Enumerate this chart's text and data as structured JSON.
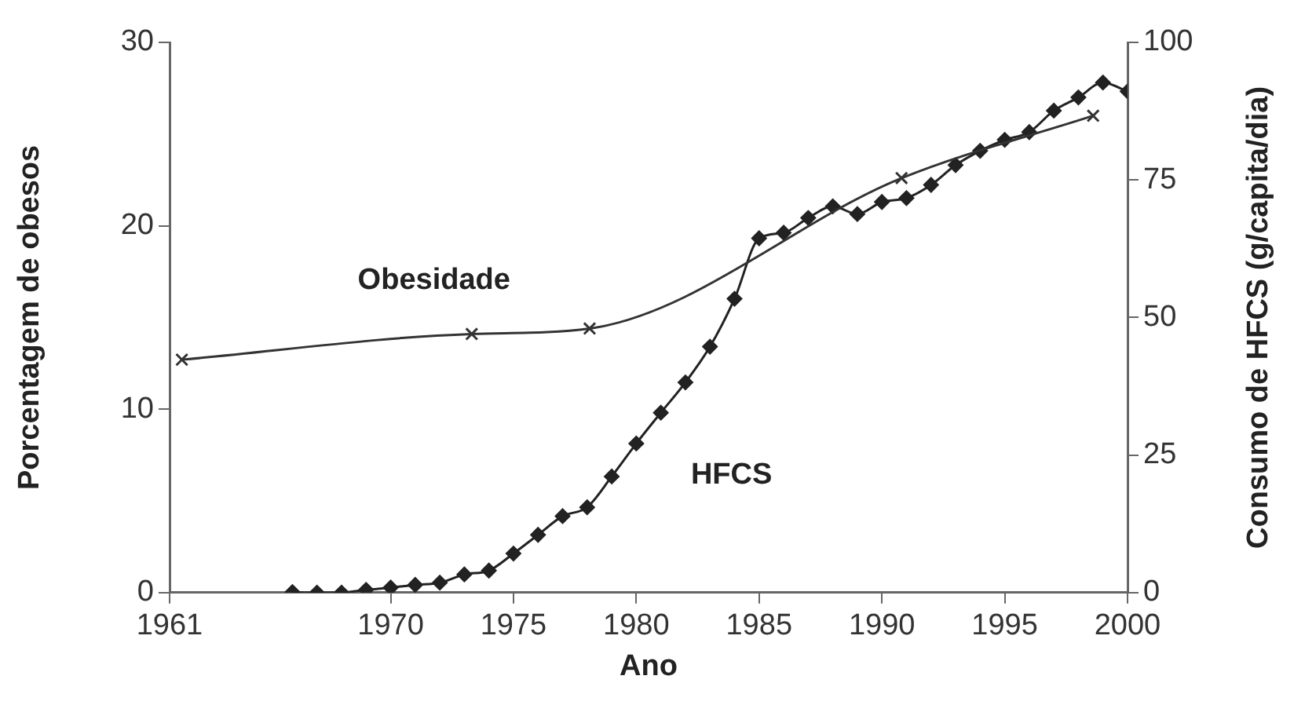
{
  "chart_data": {
    "type": "line",
    "xlabel": "Ano",
    "ylabel": "Porcentagem de obesos",
    "y2label": "Consumo de HFCS (g/capita/dia)",
    "xlim": [
      1961,
      2000
    ],
    "xticks": [
      1961,
      1970,
      1975,
      1980,
      1985,
      1990,
      1995,
      2000
    ],
    "ylim": [
      0,
      30
    ],
    "yticks": [
      0,
      10,
      20,
      30
    ],
    "y2lim": [
      0,
      100
    ],
    "y2ticks": [
      0,
      25,
      50,
      75,
      100
    ],
    "grid": false,
    "legend": false,
    "series": [
      {
        "name": "Obesidade",
        "color": "#333333",
        "marker": "cross",
        "x": [
          1961.5,
          1973.3,
          1978.1,
          1990.8,
          1998.6
        ],
        "values": [
          12.7,
          14.1,
          14.4,
          22.6,
          26.0
        ]
      },
      {
        "name": "HFCS",
        "color": "#222222",
        "marker": "diamond",
        "axis": "y2",
        "x": [
          1966,
          1967,
          1968,
          1969,
          1970,
          1971,
          1972,
          1973,
          1974,
          1975,
          1976,
          1977,
          1978,
          1979,
          1980,
          1981,
          1982,
          1983,
          1984,
          1985,
          1986,
          1987,
          1988,
          1989,
          1990,
          1991,
          1992,
          1993,
          1994,
          1995,
          1996,
          1997,
          1998,
          1999,
          2000
        ],
        "values": [
          0.1,
          0,
          0,
          0.5,
          0.9,
          1.4,
          1.8,
          3.3,
          4.0,
          7.1,
          10.5,
          13.9,
          15.5,
          21.1,
          27.1,
          32.7,
          38.2,
          44.7,
          53.4,
          64.4,
          65.4,
          68.1,
          70.2,
          68.8,
          71.0,
          71.7,
          74.1,
          77.7,
          80.3,
          82.3,
          83.7,
          87.6,
          90.0,
          92.7,
          91.1
        ]
      }
    ]
  }
}
